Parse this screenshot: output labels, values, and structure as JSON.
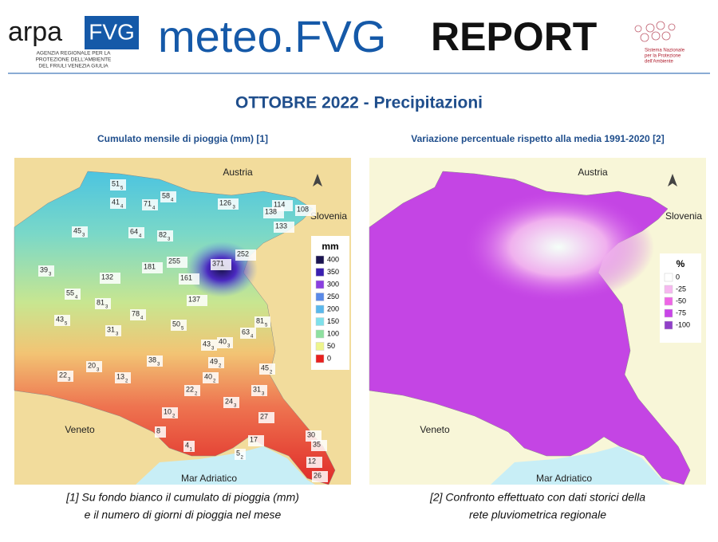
{
  "header": {
    "logo_arpa": "ARPA",
    "logo_fvg": "FVG",
    "logo_subtitle": [
      "AGENZIA REGIONALE PER LA",
      "PROTEZIONE DELL'AMBIENTE",
      "DEL FRIULI VENEZIA GIULIA"
    ],
    "banner_meteo": "meteo.FVG",
    "banner_report": "REPORT",
    "snpa": [
      "Sistema Nazionale",
      "per la Protezione",
      "dell'Ambiente"
    ]
  },
  "title": "OTTOBRE 2022 - Precipitazioni",
  "maps": [
    {
      "subtitle": "Cumulato mensile di pioggia (mm) [1]",
      "labels": [
        "Austria",
        "Slovenia",
        "Veneto",
        "Mar Adriatico"
      ],
      "legend": {
        "title": "mm",
        "items": [
          {
            "value": 400,
            "color": "#1a1450"
          },
          {
            "value": 350,
            "color": "#3a1fb0"
          },
          {
            "value": 300,
            "color": "#8a3fe0"
          },
          {
            "value": 250,
            "color": "#5a8ae8"
          },
          {
            "value": 200,
            "color": "#5ab8ec"
          },
          {
            "value": 150,
            "color": "#7fe0ea"
          },
          {
            "value": 100,
            "color": "#8ee0a0"
          },
          {
            "value": 50,
            "color": "#eef58c"
          },
          {
            "value": 0,
            "color": "#e8201e"
          }
        ]
      },
      "stations": [
        {
          "value": 51,
          "days": 5
        },
        {
          "value": 41,
          "days": 4
        },
        {
          "value": 71,
          "days": 4
        },
        {
          "value": 58,
          "days": 4
        },
        {
          "value": 126,
          "days": 3
        },
        {
          "value": 114
        },
        {
          "value": 138
        },
        {
          "value": 108
        },
        {
          "value": 133
        },
        {
          "value": 45,
          "days": 3
        },
        {
          "value": 64,
          "days": 4
        },
        {
          "value": 82,
          "days": 3
        },
        {
          "value": 252
        },
        {
          "value": 371
        },
        {
          "value": 255
        },
        {
          "value": 39,
          "days": 3
        },
        {
          "value": 132
        },
        {
          "value": 181
        },
        {
          "value": 161
        },
        {
          "value": 55,
          "days": 4
        },
        {
          "value": 81,
          "days": 3
        },
        {
          "value": 137
        },
        {
          "value": 78,
          "days": 4
        },
        {
          "value": 43,
          "days": 5
        },
        {
          "value": 31,
          "days": 3
        },
        {
          "value": 50,
          "days": 5
        },
        {
          "value": 81,
          "days": 5
        },
        {
          "value": 63,
          "days": 4
        },
        {
          "value": 43,
          "days": 3
        },
        {
          "value": 40,
          "days": 3
        },
        {
          "value": 38,
          "days": 3
        },
        {
          "value": 49,
          "days": 2
        },
        {
          "value": 45,
          "days": 2
        },
        {
          "value": 22,
          "days": 3
        },
        {
          "value": 20,
          "days": 3
        },
        {
          "value": 13,
          "days": 2
        },
        {
          "value": 40,
          "days": 2
        },
        {
          "value": 22,
          "days": 2
        },
        {
          "value": 31,
          "days": 3
        },
        {
          "value": 24,
          "days": 3
        },
        {
          "value": 10,
          "days": 2
        },
        {
          "value": 27
        },
        {
          "value": 8
        },
        {
          "value": 4,
          "days": 1
        },
        {
          "value": 17
        },
        {
          "value": 30
        },
        {
          "value": 35
        },
        {
          "value": 5,
          "days": 2
        },
        {
          "value": 12
        },
        {
          "value": 26
        }
      ],
      "caption": [
        "[1] Su fondo bianco il cumulato di pioggia (mm)",
        "e il numero di giorni di pioggia nel mese"
      ]
    },
    {
      "subtitle": "Variazione percentuale rispetto alla media 1991-2020 [2]",
      "labels": [
        "Austria",
        "Slovenia",
        "Veneto",
        "Mar Adriatico"
      ],
      "legend": {
        "title": "%",
        "items": [
          {
            "value": 0,
            "color": "#ffffff"
          },
          {
            "value": -25,
            "color": "#f6b8f0"
          },
          {
            "value": -50,
            "color": "#ee66e6"
          },
          {
            "value": -75,
            "color": "#c845e8"
          },
          {
            "value": -100,
            "color": "#9040c8"
          }
        ]
      },
      "caption": [
        "[2] Confronto effettuato con dati storici della",
        "rete pluviometrica regionale"
      ]
    }
  ]
}
